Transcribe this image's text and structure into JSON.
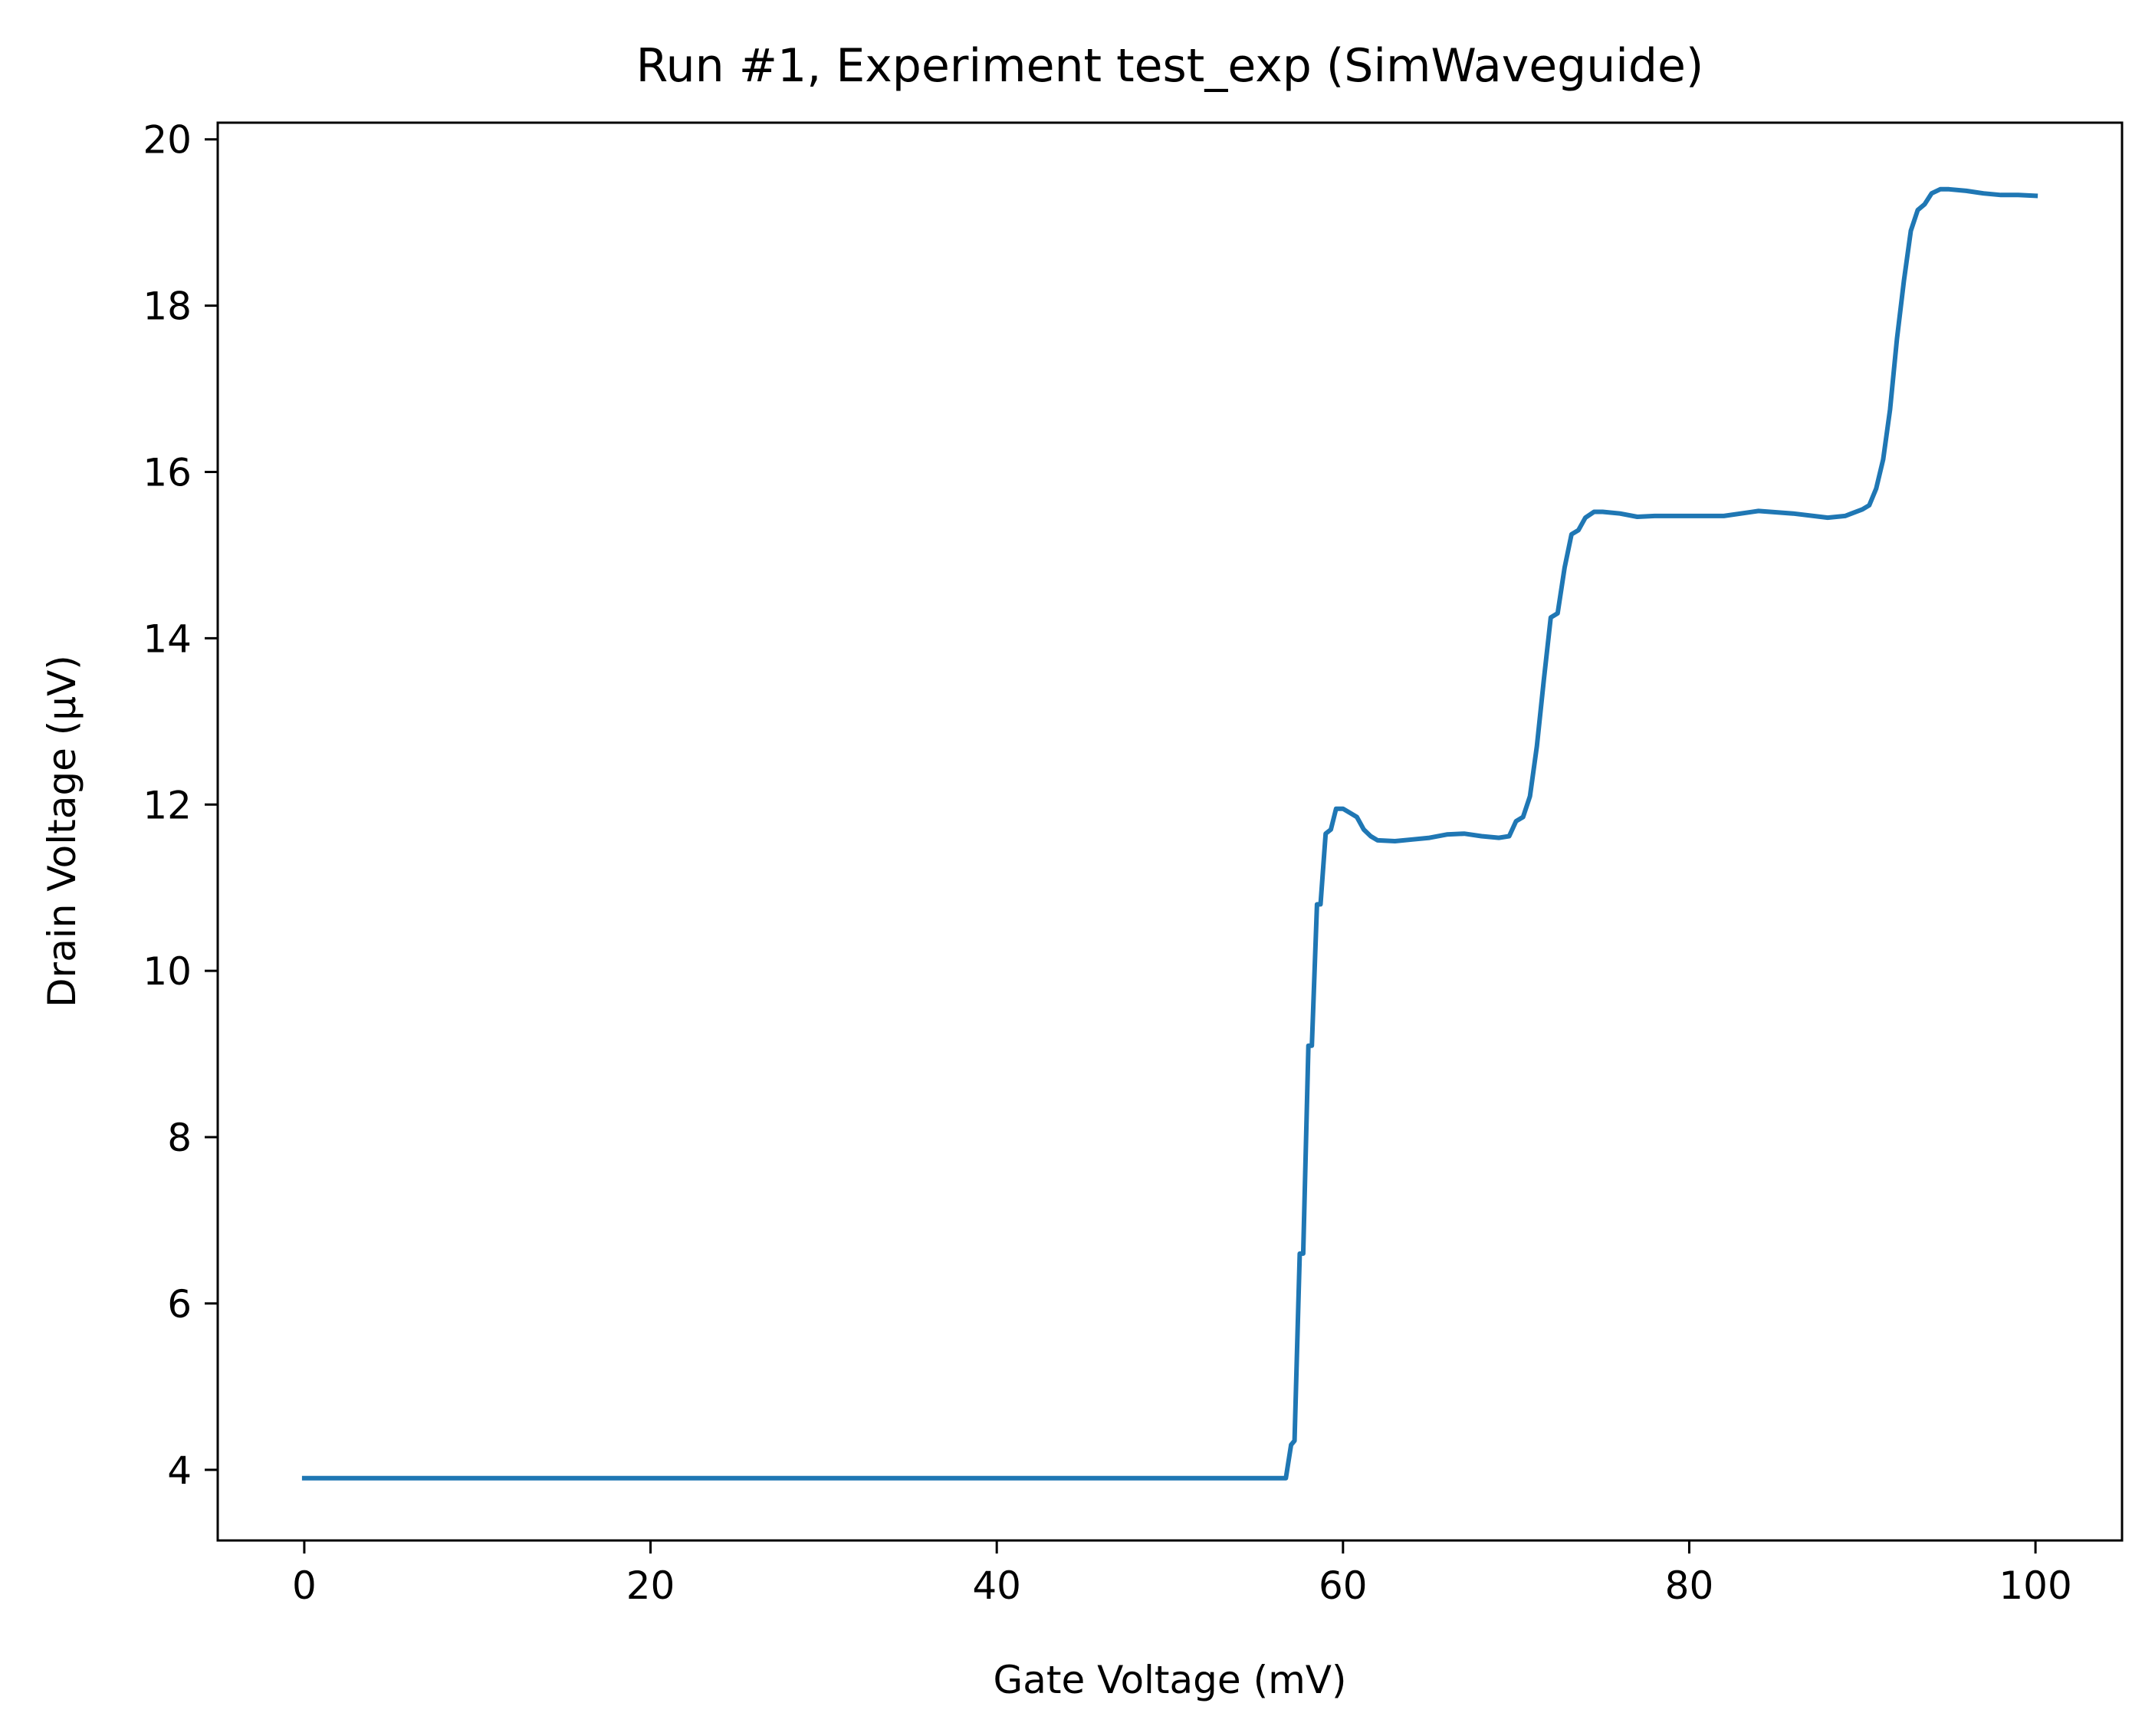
{
  "chart_data": {
    "type": "line",
    "title": "Run #1, Experiment test_exp (SimWaveguide)",
    "xlabel": "Gate Voltage (mV)",
    "ylabel": "Drain Voltage (μV)",
    "xlim": [
      -5,
      105
    ],
    "ylim": [
      3.15,
      20.2
    ],
    "xticks": [
      0,
      20,
      40,
      60,
      80,
      100
    ],
    "yticks": [
      4,
      6,
      8,
      10,
      12,
      14,
      16,
      18,
      20
    ],
    "grid": false,
    "line_color": "#1f77b4",
    "series": [
      {
        "x": [
          0,
          56.7,
          57.0,
          57.2,
          57.5,
          57.7,
          58.0,
          58.2,
          58.5,
          58.7,
          59.0,
          59.3,
          59.6,
          60.0,
          60.4,
          60.8,
          61.2,
          61.6,
          62.0,
          63.0,
          64.0,
          65.0,
          66.0,
          67.0,
          68.0,
          69.0,
          69.6,
          70.0,
          70.4,
          70.8,
          71.2,
          71.6,
          72.0,
          72.4,
          72.8,
          73.2,
          73.6,
          74.0,
          74.5,
          75.0,
          76.0,
          77.0,
          78.0,
          80.0,
          82.0,
          84.0,
          86.0,
          88.0,
          89.0,
          90.0,
          90.4,
          90.8,
          91.2,
          91.6,
          92.0,
          92.4,
          92.8,
          93.2,
          93.6,
          94.0,
          94.5,
          95.0,
          96.0,
          97.0,
          98.0,
          99.0,
          100.0
        ],
        "y": [
          3.9,
          3.9,
          4.3,
          4.35,
          6.6,
          6.6,
          9.1,
          9.1,
          10.8,
          10.8,
          11.65,
          11.7,
          11.95,
          11.95,
          11.9,
          11.85,
          11.7,
          11.62,
          11.57,
          11.56,
          11.58,
          11.6,
          11.64,
          11.65,
          11.62,
          11.6,
          11.62,
          11.8,
          11.85,
          12.1,
          12.7,
          13.5,
          14.25,
          14.3,
          14.85,
          15.25,
          15.3,
          15.45,
          15.52,
          15.52,
          15.5,
          15.46,
          15.47,
          15.47,
          15.47,
          15.53,
          15.5,
          15.45,
          15.47,
          15.55,
          15.6,
          15.8,
          16.15,
          16.75,
          17.6,
          18.3,
          18.9,
          19.15,
          19.22,
          19.35,
          19.4,
          19.4,
          19.38,
          19.35,
          19.33,
          19.33,
          19.32
        ]
      }
    ]
  }
}
